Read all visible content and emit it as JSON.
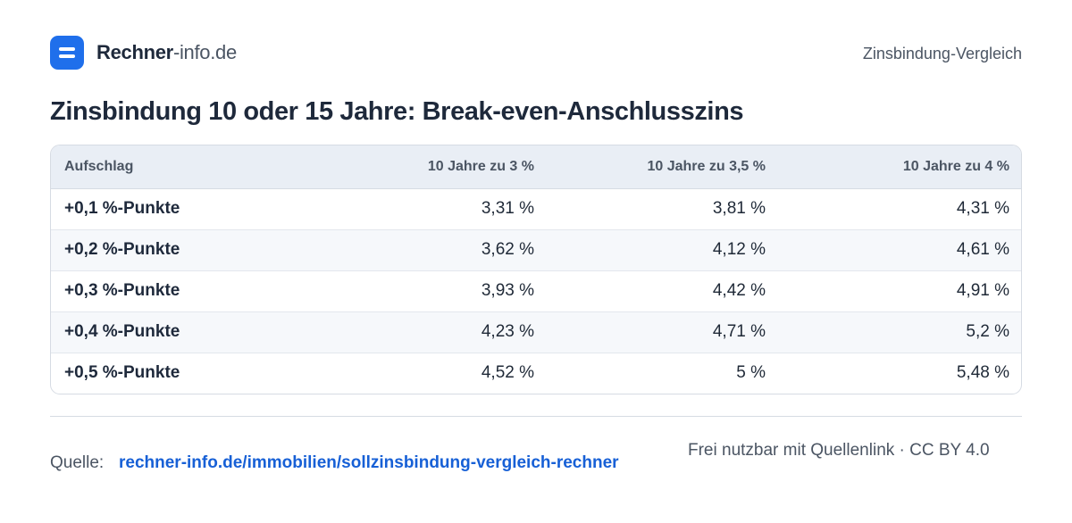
{
  "header": {
    "brand_bold": "Rechner",
    "brand_light": "-info.de",
    "right_label": "Zinsbindung-Vergleich",
    "logo_icon": "equals-icon",
    "accent_color": "#1f6feb"
  },
  "title": "Zinsbindung 10 oder 15 Jahre: Break-even-Anschlusszins",
  "table": {
    "headers": [
      "Aufschlag",
      "10 Jahre zu 3 %",
      "10 Jahre zu 3,5 %",
      "10 Jahre zu 4 %"
    ],
    "rows": [
      [
        "+0,1 %-Punkte",
        "3,31 %",
        "3,81 %",
        "4,31 %"
      ],
      [
        "+0,2 %-Punkte",
        "3,62 %",
        "4,12 %",
        "4,61 %"
      ],
      [
        "+0,3 %-Punkte",
        "3,93 %",
        "4,42 %",
        "4,91 %"
      ],
      [
        "+0,4 %-Punkte",
        "4,23 %",
        "4,71 %",
        "5,2 %"
      ],
      [
        "+0,5 %-Punkte",
        "4,52 %",
        "5 %",
        "5,48 %"
      ]
    ]
  },
  "footer": {
    "source_label": "Quelle:",
    "source_link": "rechner-info.de/immobilien/sollzinsbindung-vergleich-rechner",
    "license": "Frei nutzbar mit Quellenlink · CC BY 4.0"
  }
}
